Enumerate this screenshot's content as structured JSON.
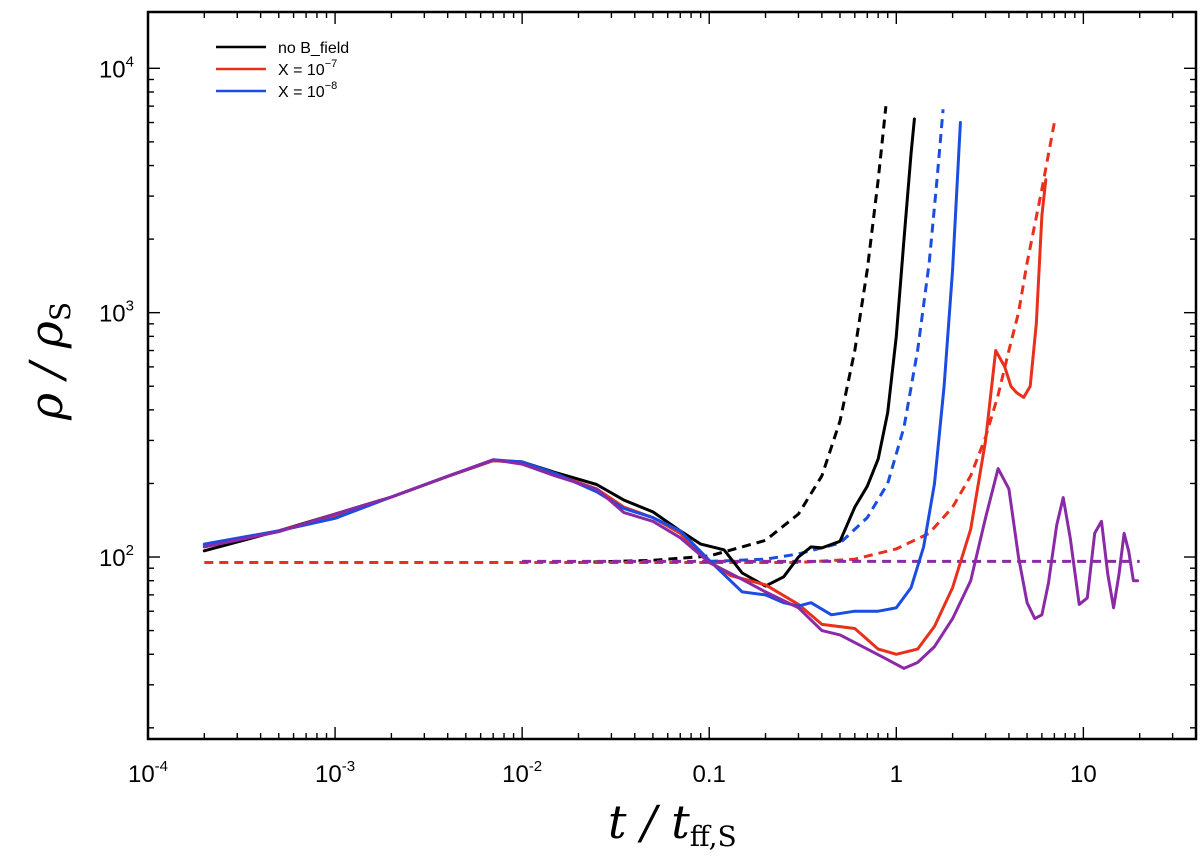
{
  "chart_data": {
    "type": "line",
    "scale": {
      "x": "log",
      "y": "log"
    },
    "xlim": [
      0.0001,
      40
    ],
    "ylim": [
      18,
      17000
    ],
    "xlabel": {
      "main": "t / t",
      "sub": "ff,S"
    },
    "ylabel": {
      "main": "ρ / ρ",
      "sub": "S"
    },
    "x_ticks": [
      {
        "value": 0.0001,
        "base": "10",
        "exp": "-4"
      },
      {
        "value": 0.001,
        "base": "10",
        "exp": "-3"
      },
      {
        "value": 0.01,
        "base": "10",
        "exp": "-2"
      },
      {
        "value": 0.1,
        "text": "0.1"
      },
      {
        "value": 1,
        "text": "1"
      },
      {
        "value": 10,
        "text": "10"
      }
    ],
    "y_ticks": [
      {
        "value": 100,
        "base": "10",
        "exp": "2"
      },
      {
        "value": 1000,
        "base": "10",
        "exp": "3"
      },
      {
        "value": 10000,
        "base": "10",
        "exp": "4"
      }
    ],
    "legend": {
      "position": "top-left",
      "entries": [
        {
          "text": "no B_field",
          "color": "#000000"
        },
        {
          "base": "X = 10",
          "exp": "−7",
          "color": "#e8301c"
        },
        {
          "base": "X = 10",
          "exp": "−8",
          "color": "#1a4de0"
        }
      ]
    },
    "series": [
      {
        "name": "no B_field (simulation)",
        "color": "#000000",
        "dash": false,
        "points": [
          [
            0.0002,
            106
          ],
          [
            0.0005,
            128
          ],
          [
            0.001,
            150
          ],
          [
            0.002,
            176
          ],
          [
            0.004,
            214
          ],
          [
            0.007,
            248
          ],
          [
            0.01,
            245
          ],
          [
            0.015,
            222
          ],
          [
            0.025,
            198
          ],
          [
            0.035,
            171
          ],
          [
            0.05,
            153
          ],
          [
            0.07,
            128
          ],
          [
            0.09,
            113
          ],
          [
            0.12,
            107
          ],
          [
            0.15,
            86
          ],
          [
            0.2,
            76
          ],
          [
            0.25,
            83
          ],
          [
            0.3,
            100
          ],
          [
            0.35,
            110
          ],
          [
            0.4,
            109
          ],
          [
            0.5,
            116
          ],
          [
            0.6,
            160
          ],
          [
            0.7,
            195
          ],
          [
            0.8,
            252
          ],
          [
            0.9,
            390
          ],
          [
            1.0,
            800
          ],
          [
            1.1,
            2000
          ],
          [
            1.2,
            4500
          ],
          [
            1.25,
            6200
          ]
        ]
      },
      {
        "name": "no B_field (model)",
        "color": "#000000",
        "dash": true,
        "points": [
          [
            0.02,
            95
          ],
          [
            0.05,
            97
          ],
          [
            0.1,
            101
          ],
          [
            0.2,
            117
          ],
          [
            0.3,
            150
          ],
          [
            0.4,
            215
          ],
          [
            0.5,
            360
          ],
          [
            0.6,
            700
          ],
          [
            0.7,
            1500
          ],
          [
            0.8,
            3500
          ],
          [
            0.88,
            7000
          ]
        ]
      },
      {
        "name": "X = 10^-7 (simulation)",
        "color": "#e8301c",
        "dash": false,
        "points": [
          [
            0.0002,
            112
          ],
          [
            0.0005,
            128
          ],
          [
            0.001,
            148
          ],
          [
            0.002,
            176
          ],
          [
            0.004,
            214
          ],
          [
            0.007,
            248
          ],
          [
            0.01,
            243
          ],
          [
            0.015,
            218
          ],
          [
            0.025,
            190
          ],
          [
            0.035,
            160
          ],
          [
            0.05,
            145
          ],
          [
            0.07,
            125
          ],
          [
            0.1,
            96
          ],
          [
            0.13,
            84
          ],
          [
            0.2,
            77
          ],
          [
            0.3,
            64
          ],
          [
            0.4,
            53
          ],
          [
            0.6,
            51
          ],
          [
            0.8,
            42
          ],
          [
            1.0,
            40
          ],
          [
            1.3,
            42
          ],
          [
            1.6,
            52
          ],
          [
            2.0,
            75
          ],
          [
            2.5,
            130
          ],
          [
            3.0,
            300
          ],
          [
            3.4,
            700
          ],
          [
            3.8,
            600
          ],
          [
            4.1,
            500
          ],
          [
            4.4,
            470
          ],
          [
            4.8,
            450
          ],
          [
            5.2,
            500
          ],
          [
            5.6,
            900
          ],
          [
            6.0,
            2500
          ],
          [
            6.3,
            3500
          ]
        ]
      },
      {
        "name": "X = 10^-7 (model)",
        "color": "#e8301c",
        "dash": true,
        "points": [
          [
            0.0002,
            95
          ],
          [
            0.001,
            95
          ],
          [
            0.01,
            95
          ],
          [
            0.1,
            95
          ],
          [
            0.3,
            95
          ],
          [
            0.6,
            98
          ],
          [
            1.0,
            108
          ],
          [
            1.5,
            125
          ],
          [
            2.0,
            160
          ],
          [
            2.5,
            215
          ],
          [
            3.0,
            310
          ],
          [
            3.5,
            460
          ],
          [
            4.0,
            700
          ],
          [
            4.5,
            1000
          ],
          [
            5.0,
            1600
          ],
          [
            6.0,
            3200
          ],
          [
            7.0,
            6000
          ]
        ]
      },
      {
        "name": "X = 10^-8 (simulation)",
        "color": "#1a4de0",
        "dash": false,
        "points": [
          [
            0.0002,
            113
          ],
          [
            0.0005,
            128
          ],
          [
            0.001,
            144
          ],
          [
            0.002,
            176
          ],
          [
            0.004,
            214
          ],
          [
            0.007,
            250
          ],
          [
            0.01,
            245
          ],
          [
            0.015,
            220
          ],
          [
            0.025,
            185
          ],
          [
            0.035,
            158
          ],
          [
            0.05,
            145
          ],
          [
            0.07,
            128
          ],
          [
            0.1,
            97
          ],
          [
            0.15,
            72
          ],
          [
            0.2,
            70
          ],
          [
            0.25,
            65
          ],
          [
            0.3,
            63
          ],
          [
            0.35,
            65
          ],
          [
            0.45,
            58
          ],
          [
            0.6,
            60
          ],
          [
            0.8,
            60
          ],
          [
            1.0,
            62
          ],
          [
            1.2,
            75
          ],
          [
            1.4,
            110
          ],
          [
            1.6,
            200
          ],
          [
            1.8,
            500
          ],
          [
            2.0,
            1500
          ],
          [
            2.2,
            6000
          ]
        ]
      },
      {
        "name": "X = 10^-8 (model)",
        "color": "#1a4de0",
        "dash": true,
        "points": [
          [
            0.1,
            96
          ],
          [
            0.2,
            98
          ],
          [
            0.3,
            103
          ],
          [
            0.5,
            114
          ],
          [
            0.7,
            145
          ],
          [
            0.9,
            200
          ],
          [
            1.1,
            340
          ],
          [
            1.3,
            700
          ],
          [
            1.5,
            1600
          ],
          [
            1.65,
            3500
          ],
          [
            1.78,
            6800
          ]
        ]
      },
      {
        "name": "unlabeled purple (simulation)",
        "color": "#8a2aa6",
        "dash": false,
        "points": [
          [
            0.0002,
            110
          ],
          [
            0.0005,
            127
          ],
          [
            0.001,
            150
          ],
          [
            0.002,
            176
          ],
          [
            0.004,
            214
          ],
          [
            0.007,
            250
          ],
          [
            0.01,
            240
          ],
          [
            0.015,
            215
          ],
          [
            0.025,
            190
          ],
          [
            0.035,
            152
          ],
          [
            0.05,
            140
          ],
          [
            0.07,
            120
          ],
          [
            0.1,
            95
          ],
          [
            0.15,
            81
          ],
          [
            0.2,
            72
          ],
          [
            0.3,
            62
          ],
          [
            0.4,
            50
          ],
          [
            0.5,
            48
          ],
          [
            0.7,
            42
          ],
          [
            0.9,
            38
          ],
          [
            1.1,
            35
          ],
          [
            1.3,
            37
          ],
          [
            1.6,
            43
          ],
          [
            2.0,
            56
          ],
          [
            2.5,
            80
          ],
          [
            3.0,
            145
          ],
          [
            3.5,
            230
          ],
          [
            4.0,
            190
          ],
          [
            4.5,
            100
          ],
          [
            5.0,
            65
          ],
          [
            5.5,
            56
          ],
          [
            6.0,
            58
          ],
          [
            6.5,
            78
          ],
          [
            7.2,
            135
          ],
          [
            7.8,
            175
          ],
          [
            8.5,
            120
          ],
          [
            9.5,
            64
          ],
          [
            10.5,
            68
          ],
          [
            11.5,
            125
          ],
          [
            12.5,
            140
          ],
          [
            13.5,
            85
          ],
          [
            14.5,
            62
          ],
          [
            15.5,
            85
          ],
          [
            16.5,
            125
          ],
          [
            17.5,
            105
          ],
          [
            18.5,
            80
          ],
          [
            19.5,
            80
          ]
        ]
      },
      {
        "name": "unlabeled purple (model)",
        "color": "#8a2aa6",
        "dash": true,
        "points": [
          [
            0.01,
            96
          ],
          [
            0.1,
            96
          ],
          [
            1,
            96
          ],
          [
            10,
            96
          ],
          [
            20,
            96
          ]
        ]
      }
    ]
  }
}
